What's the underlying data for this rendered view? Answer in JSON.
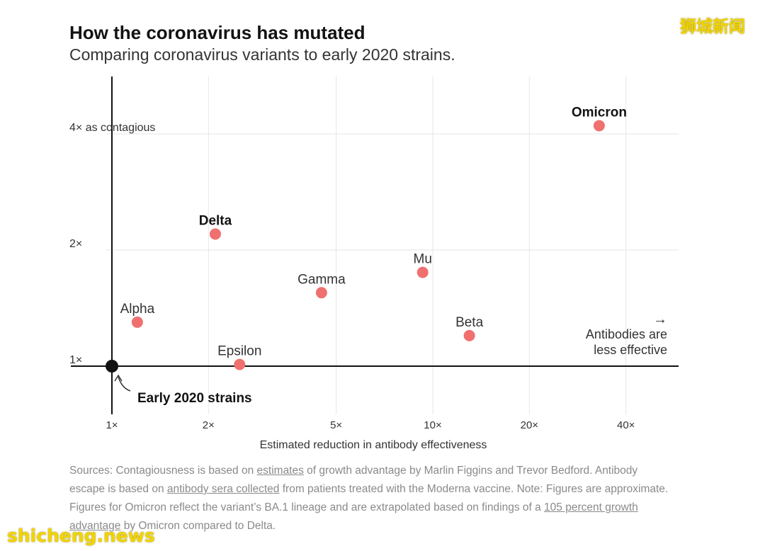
{
  "header": {
    "title": "How the coronavirus has mutated",
    "subtitle": "Comparing coronavirus variants to early 2020 strains."
  },
  "watermarks": {
    "top_right": "狮城新闻",
    "bottom_left": "shicheng.news"
  },
  "chart_data": {
    "type": "scatter",
    "title": "How the coronavirus has mutated",
    "subtitle": "Comparing coronavirus variants to early 2020 strains.",
    "xlabel": "Estimated reduction in antibody effectiveness",
    "ylabel": "",
    "x_scale": "log",
    "y_scale": "log",
    "xlim": [
      1,
      60
    ],
    "ylim": [
      0.8,
      5.5
    ],
    "x_ticks": [
      {
        "value": 1,
        "label": "1×"
      },
      {
        "value": 2,
        "label": "2×"
      },
      {
        "value": 5,
        "label": "5×"
      },
      {
        "value": 10,
        "label": "10×"
      },
      {
        "value": 20,
        "label": "20×"
      },
      {
        "value": 40,
        "label": "40×"
      }
    ],
    "y_ticks": [
      {
        "value": 1,
        "label": "1×"
      },
      {
        "value": 2,
        "label": "2×"
      },
      {
        "value": 4,
        "label": "4× as contagious"
      }
    ],
    "grid": true,
    "point_color": "#f07070",
    "origin_color": "#121212",
    "points": [
      {
        "label": "Alpha",
        "x": 1.2,
        "y": 1.3,
        "bold": false
      },
      {
        "label": "Delta",
        "x": 2.1,
        "y": 2.2,
        "bold": true
      },
      {
        "label": "Epsilon",
        "x": 2.5,
        "y": 1.01,
        "bold": false
      },
      {
        "label": "Gamma",
        "x": 4.5,
        "y": 1.55,
        "bold": false
      },
      {
        "label": "Mu",
        "x": 9.3,
        "y": 1.75,
        "bold": false
      },
      {
        "label": "Beta",
        "x": 13,
        "y": 1.2,
        "bold": false
      },
      {
        "label": "Omicron",
        "x": 33,
        "y": 4.2,
        "bold": true
      }
    ],
    "origin": {
      "label": "Early 2020 strains",
      "x": 1,
      "y": 1
    },
    "annotations": {
      "arrow": "→",
      "antibodies_line1": "Antibodies are",
      "antibodies_line2": "less effective"
    }
  },
  "notes": {
    "s1": "Sources: Contagiousness is based on ",
    "l1": "estimates",
    "s2": " of growth advantage by Marlin Figgins and Trevor Bedford. Antibody escape is based on ",
    "l2": "antibody sera collected",
    "s3": " from patients treated with the Moderna vaccine. Note: Figures are approximate. Figures for Omicron reflect the variant’s BA.1 lineage and are extrapolated based on findings of a ",
    "l3": "105 percent growth advantage",
    "s4": " by Omicron compared to Delta."
  }
}
